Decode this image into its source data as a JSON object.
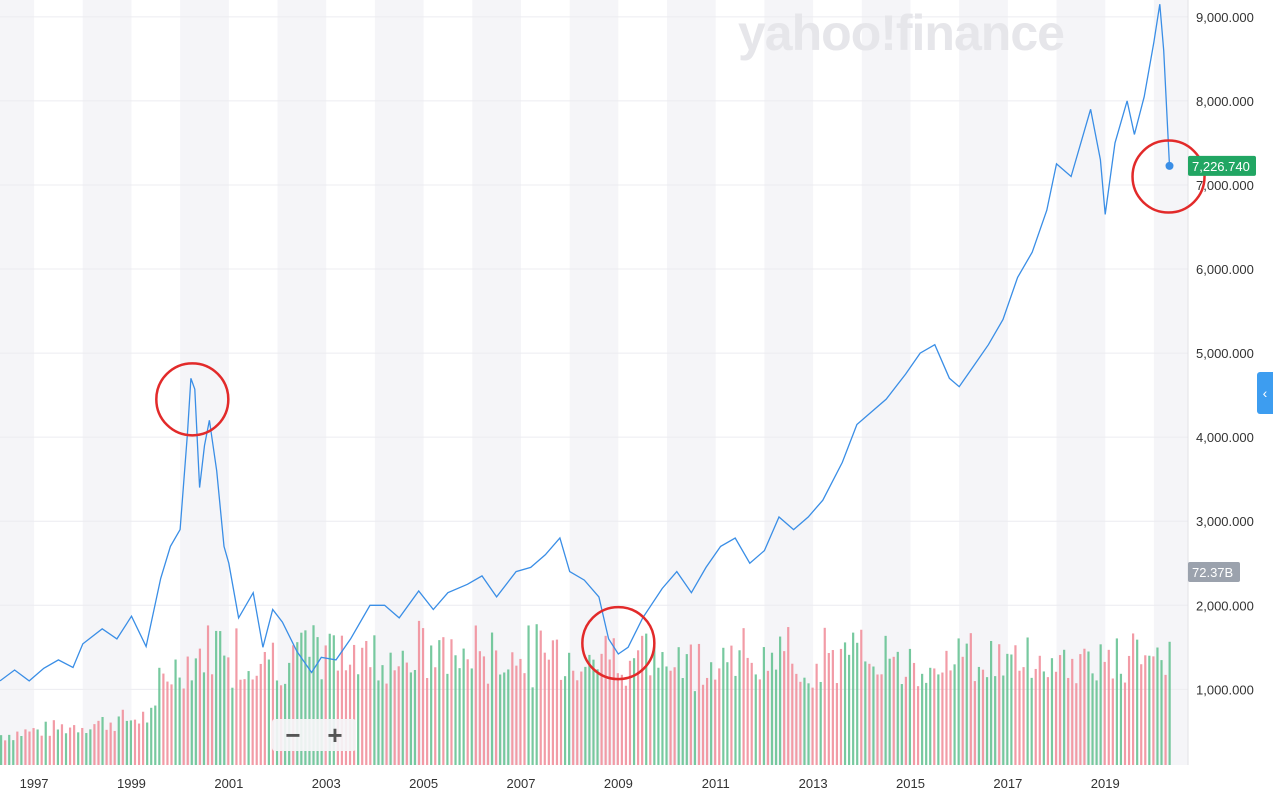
{
  "watermark": "yahoo!finance",
  "zoom": {
    "minus": "−",
    "plus": "+"
  },
  "side_tab_icon": "chevron-left-icon",
  "colors": {
    "line": "#3a8ee6",
    "vol_up": "#5fbf8e",
    "vol_down": "#f08a96",
    "price_badge": "#21a663",
    "vol_badge": "#9ba2ad",
    "annotation": "#e22a2a",
    "band": "#f5f5f8"
  },
  "chart_data": {
    "type": "line",
    "title": "",
    "xlabel": "",
    "ylabel": "",
    "x_tick_labels": [
      "1997",
      "1999",
      "2001",
      "2003",
      "2005",
      "2007",
      "2009",
      "2011",
      "2013",
      "2015",
      "2017",
      "2019"
    ],
    "y_tick_labels": [
      "1,000.000",
      "2,000.000",
      "3,000.000",
      "4,000.000",
      "5,000.000",
      "6,000.000",
      "7,000.000",
      "8,000.000",
      "9,000.000"
    ],
    "ylim": [
      100,
      9200
    ],
    "xlim": [
      1996.3,
      2020.7
    ],
    "grid": true,
    "last_price_label": "7,226.740",
    "volume_label": "72.37B",
    "series": [
      {
        "values": [
          [
            1996.3,
            1100
          ],
          [
            1996.6,
            1230
          ],
          [
            1996.9,
            1100
          ],
          [
            1997.2,
            1250
          ],
          [
            1997.5,
            1350
          ],
          [
            1997.8,
            1260
          ],
          [
            1998.0,
            1540
          ],
          [
            1998.4,
            1720
          ],
          [
            1998.7,
            1600
          ],
          [
            1999.0,
            1870
          ],
          [
            1999.3,
            1510
          ],
          [
            1999.6,
            2320
          ],
          [
            1999.8,
            2700
          ],
          [
            2000.0,
            2900
          ],
          [
            2000.15,
            4050
          ],
          [
            2000.22,
            4700
          ],
          [
            2000.3,
            4570
          ],
          [
            2000.4,
            3400
          ],
          [
            2000.5,
            3900
          ],
          [
            2000.6,
            4200
          ],
          [
            2000.75,
            3600
          ],
          [
            2000.9,
            2700
          ],
          [
            2001.0,
            2500
          ],
          [
            2001.2,
            1850
          ],
          [
            2001.5,
            2150
          ],
          [
            2001.7,
            1500
          ],
          [
            2001.9,
            1950
          ],
          [
            2002.1,
            1800
          ],
          [
            2002.4,
            1450
          ],
          [
            2002.7,
            1200
          ],
          [
            2002.9,
            1380
          ],
          [
            2003.2,
            1350
          ],
          [
            2003.5,
            1600
          ],
          [
            2003.9,
            2000
          ],
          [
            2004.2,
            2000
          ],
          [
            2004.5,
            1850
          ],
          [
            2004.9,
            2170
          ],
          [
            2005.2,
            1950
          ],
          [
            2005.5,
            2150
          ],
          [
            2005.9,
            2250
          ],
          [
            2006.2,
            2350
          ],
          [
            2006.5,
            2100
          ],
          [
            2006.9,
            2400
          ],
          [
            2007.2,
            2450
          ],
          [
            2007.5,
            2600
          ],
          [
            2007.8,
            2800
          ],
          [
            2008.0,
            2400
          ],
          [
            2008.3,
            2300
          ],
          [
            2008.6,
            2100
          ],
          [
            2008.8,
            1600
          ],
          [
            2009.0,
            1420
          ],
          [
            2009.2,
            1500
          ],
          [
            2009.5,
            1850
          ],
          [
            2009.9,
            2200
          ],
          [
            2010.2,
            2400
          ],
          [
            2010.5,
            2150
          ],
          [
            2010.8,
            2450
          ],
          [
            2011.1,
            2700
          ],
          [
            2011.4,
            2800
          ],
          [
            2011.7,
            2500
          ],
          [
            2012.0,
            2650
          ],
          [
            2012.3,
            3050
          ],
          [
            2012.6,
            2900
          ],
          [
            2012.9,
            3050
          ],
          [
            2013.2,
            3250
          ],
          [
            2013.6,
            3700
          ],
          [
            2013.9,
            4150
          ],
          [
            2014.2,
            4300
          ],
          [
            2014.5,
            4450
          ],
          [
            2014.9,
            4750
          ],
          [
            2015.2,
            5000
          ],
          [
            2015.5,
            5100
          ],
          [
            2015.8,
            4700
          ],
          [
            2016.0,
            4600
          ],
          [
            2016.3,
            4850
          ],
          [
            2016.6,
            5100
          ],
          [
            2016.9,
            5400
          ],
          [
            2017.2,
            5900
          ],
          [
            2017.5,
            6200
          ],
          [
            2017.8,
            6700
          ],
          [
            2018.0,
            7250
          ],
          [
            2018.3,
            7100
          ],
          [
            2018.7,
            7900
          ],
          [
            2018.9,
            7300
          ],
          [
            2019.0,
            6650
          ],
          [
            2019.2,
            7500
          ],
          [
            2019.45,
            8000
          ],
          [
            2019.6,
            7600
          ],
          [
            2019.8,
            8050
          ],
          [
            2020.0,
            8700
          ],
          [
            2020.12,
            9150
          ],
          [
            2020.2,
            8600
          ],
          [
            2020.32,
            7226.74
          ]
        ]
      }
    ]
  }
}
